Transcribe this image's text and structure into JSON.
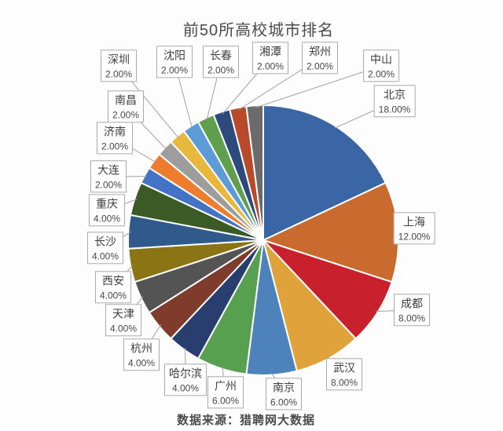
{
  "title": "前50所高校城市排名",
  "source_note": "数据来源：猎聘网大数据",
  "chart_data": {
    "type": "pie",
    "title": "前50所高校城市排名",
    "start_angle": "top",
    "direction": "clockwise",
    "legend_position": "callout-labels",
    "value_unit": "%",
    "slices": [
      {
        "label": "北京",
        "value": 18,
        "pct_label": "18.00%",
        "color": "#3A66A5"
      },
      {
        "label": "上海",
        "value": 12,
        "pct_label": "12.00%",
        "color": "#C96A2F"
      },
      {
        "label": "成都",
        "value": 8,
        "pct_label": "8.00%",
        "color": "#C9202E"
      },
      {
        "label": "武汉",
        "value": 8,
        "pct_label": "8.00%",
        "color": "#E0A23B"
      },
      {
        "label": "南京",
        "value": 6,
        "pct_label": "6.00%",
        "color": "#4D82BB"
      },
      {
        "label": "广州",
        "value": 6,
        "pct_label": "6.00%",
        "color": "#57A04F"
      },
      {
        "label": "哈尔滨",
        "value": 4,
        "pct_label": "4.00%",
        "color": "#273E6E"
      },
      {
        "label": "杭州",
        "value": 4,
        "pct_label": "4.00%",
        "color": "#7F3B2B"
      },
      {
        "label": "天津",
        "value": 4,
        "pct_label": "4.00%",
        "color": "#545454"
      },
      {
        "label": "西安",
        "value": 4,
        "pct_label": "4.00%",
        "color": "#8B7414"
      },
      {
        "label": "长沙",
        "value": 4,
        "pct_label": "4.00%",
        "color": "#30598C"
      },
      {
        "label": "重庆",
        "value": 4,
        "pct_label": "4.00%",
        "color": "#3A5A26"
      },
      {
        "label": "大连",
        "value": 2,
        "pct_label": "2.00%",
        "color": "#4473C5"
      },
      {
        "label": "济南",
        "value": 2,
        "pct_label": "2.00%",
        "color": "#EC7D2F"
      },
      {
        "label": "南昌",
        "value": 2,
        "pct_label": "2.00%",
        "color": "#9D9D9D"
      },
      {
        "label": "深圳",
        "value": 2,
        "pct_label": "2.00%",
        "color": "#E8B83D"
      },
      {
        "label": "沈阳",
        "value": 2,
        "pct_label": "2.00%",
        "color": "#5C9BD5"
      },
      {
        "label": "长春",
        "value": 2,
        "pct_label": "2.00%",
        "color": "#5FA04E"
      },
      {
        "label": "湘潭",
        "value": 2,
        "pct_label": "2.00%",
        "color": "#2D4A7D"
      },
      {
        "label": "郑州",
        "value": 2,
        "pct_label": "2.00%",
        "color": "#B84A2B"
      },
      {
        "label": "中山",
        "value": 2,
        "pct_label": "2.00%",
        "color": "#6B6B6B"
      }
    ]
  }
}
